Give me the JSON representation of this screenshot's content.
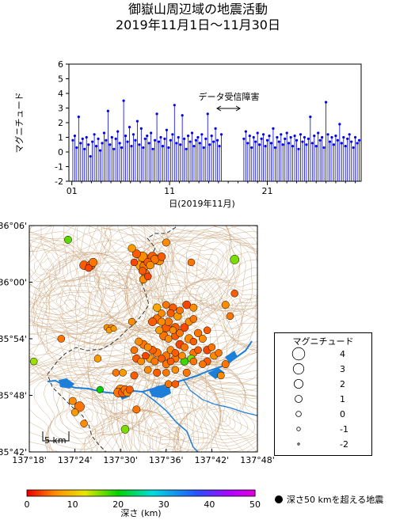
{
  "header": {
    "title_line1": "御嶽山周辺域の地震活動",
    "title_line2": "2019年11月1日～11月30日"
  },
  "chart_data": [
    {
      "type": "stem",
      "title": "",
      "xlabel": "日(2019年11月)",
      "ylabel": "マグニチュード",
      "xlim": [
        1,
        30
      ],
      "ylim": [
        -2,
        6
      ],
      "yticks": [
        "-2",
        "-1",
        "0",
        "1",
        "2",
        "3",
        "4",
        "5",
        "6"
      ],
      "xticks": [
        "01",
        "11",
        "21"
      ],
      "gap": {
        "label": "データ受信障害",
        "from_day": 16.5,
        "to_day": 18.5
      },
      "colors": {
        "stem": "#0000ee"
      },
      "events": [
        [
          1.1,
          0.8
        ],
        [
          1.3,
          1.1
        ],
        [
          1.5,
          0.3
        ],
        [
          1.7,
          2.4
        ],
        [
          1.9,
          0.6
        ],
        [
          2.1,
          0.9
        ],
        [
          2.3,
          0.2
        ],
        [
          2.5,
          1.0
        ],
        [
          2.7,
          0.5
        ],
        [
          2.9,
          -0.3
        ],
        [
          3.1,
          0.7
        ],
        [
          3.3,
          1.2
        ],
        [
          3.5,
          0.4
        ],
        [
          3.7,
          0.9
        ],
        [
          3.9,
          0.1
        ],
        [
          4.1,
          0.6
        ],
        [
          4.3,
          1.3
        ],
        [
          4.5,
          0.8
        ],
        [
          4.7,
          2.8
        ],
        [
          4.9,
          0.5
        ],
        [
          5.1,
          1.0
        ],
        [
          5.3,
          0.2
        ],
        [
          5.5,
          0.9
        ],
        [
          5.7,
          1.4
        ],
        [
          5.9,
          0.6
        ],
        [
          6.1,
          0.3
        ],
        [
          6.3,
          3.5
        ],
        [
          6.5,
          1.1
        ],
        [
          6.7,
          0.7
        ],
        [
          6.9,
          1.7
        ],
        [
          7.1,
          0.4
        ],
        [
          7.3,
          1.2
        ],
        [
          7.5,
          0.8
        ],
        [
          7.7,
          2.1
        ],
        [
          7.9,
          0.5
        ],
        [
          8.1,
          1.6
        ],
        [
          8.3,
          0.3
        ],
        [
          8.5,
          0.9
        ],
        [
          8.7,
          1.1
        ],
        [
          8.9,
          0.6
        ],
        [
          9.1,
          1.3
        ],
        [
          9.3,
          0.2
        ],
        [
          9.5,
          0.8
        ],
        [
          9.7,
          2.6
        ],
        [
          9.9,
          0.7
        ],
        [
          10.1,
          1.0
        ],
        [
          10.3,
          0.4
        ],
        [
          10.5,
          0.9
        ],
        [
          10.7,
          1.5
        ],
        [
          10.9,
          0.3
        ],
        [
          11.1,
          0.8
        ],
        [
          11.3,
          1.2
        ],
        [
          11.5,
          3.2
        ],
        [
          11.7,
          0.6
        ],
        [
          11.9,
          1.0
        ],
        [
          12.1,
          0.5
        ],
        [
          12.3,
          2.5
        ],
        [
          12.5,
          0.9
        ],
        [
          12.7,
          0.2
        ],
        [
          12.9,
          1.1
        ],
        [
          13.1,
          0.7
        ],
        [
          13.3,
          1.3
        ],
        [
          13.5,
          0.4
        ],
        [
          13.7,
          0.8
        ],
        [
          13.9,
          1.0
        ],
        [
          14.1,
          0.6
        ],
        [
          14.3,
          1.2
        ],
        [
          14.5,
          0.3
        ],
        [
          14.7,
          0.9
        ],
        [
          14.9,
          2.6
        ],
        [
          15.1,
          0.5
        ],
        [
          15.3,
          1.1
        ],
        [
          15.5,
          0.7
        ],
        [
          15.7,
          1.6
        ],
        [
          15.9,
          0.8
        ],
        [
          16.1,
          0.4
        ],
        [
          16.3,
          1.2
        ],
        [
          18.6,
          0.9
        ],
        [
          18.8,
          1.4
        ],
        [
          19.0,
          0.6
        ],
        [
          19.2,
          1.1
        ],
        [
          19.4,
          0.3
        ],
        [
          19.6,
          1.0
        ],
        [
          19.8,
          0.7
        ],
        [
          20.0,
          1.3
        ],
        [
          20.2,
          0.5
        ],
        [
          20.4,
          0.9
        ],
        [
          20.6,
          1.2
        ],
        [
          20.8,
          0.4
        ],
        [
          21.0,
          0.8
        ],
        [
          21.2,
          1.1
        ],
        [
          21.4,
          0.6
        ],
        [
          21.6,
          1.6
        ],
        [
          21.8,
          0.3
        ],
        [
          22.0,
          1.0
        ],
        [
          22.2,
          0.7
        ],
        [
          22.4,
          1.2
        ],
        [
          22.6,
          0.5
        ],
        [
          22.8,
          0.9
        ],
        [
          23.0,
          1.3
        ],
        [
          23.2,
          0.6
        ],
        [
          23.4,
          1.0
        ],
        [
          23.6,
          0.4
        ],
        [
          23.8,
          1.1
        ],
        [
          24.0,
          0.8
        ],
        [
          24.2,
          0.2
        ],
        [
          24.4,
          1.2
        ],
        [
          24.6,
          0.7
        ],
        [
          24.8,
          1.0
        ],
        [
          25.0,
          0.5
        ],
        [
          25.2,
          0.9
        ],
        [
          25.4,
          2.4
        ],
        [
          25.6,
          0.6
        ],
        [
          25.8,
          1.1
        ],
        [
          26.0,
          0.4
        ],
        [
          26.2,
          1.3
        ],
        [
          26.4,
          0.8
        ],
        [
          26.6,
          1.0
        ],
        [
          26.8,
          0.3
        ],
        [
          27.0,
          3.4
        ],
        [
          27.2,
          1.2
        ],
        [
          27.4,
          0.7
        ],
        [
          27.6,
          1.0
        ],
        [
          27.8,
          0.5
        ],
        [
          28.0,
          1.1
        ],
        [
          28.2,
          0.8
        ],
        [
          28.4,
          1.9
        ],
        [
          28.6,
          0.6
        ],
        [
          28.8,
          1.0
        ],
        [
          29.0,
          0.4
        ],
        [
          29.2,
          0.9
        ],
        [
          29.4,
          1.2
        ],
        [
          29.6,
          0.7
        ],
        [
          29.8,
          0.3
        ],
        [
          30.0,
          1.0
        ],
        [
          30.2,
          0.6
        ],
        [
          30.4,
          0.8
        ]
      ]
    },
    {
      "type": "scatter",
      "title": "",
      "xlim": [
        137.3,
        137.8
      ],
      "ylim": [
        35.7,
        36.1
      ],
      "lon_ticks": [
        "137°18'",
        "137°24'",
        "137°30'",
        "137°36'",
        "137°42'",
        "137°48'"
      ],
      "lat_ticks": [
        "36°06'",
        "36°00'",
        "35°54'",
        "35°48'",
        "35°42'"
      ],
      "scale_bar": "5 km",
      "colorbar": {
        "label": "深さ (km)",
        "ticks": [
          "0",
          "10",
          "20",
          "30",
          "40",
          "50"
        ],
        "range": [
          0,
          50
        ]
      },
      "deep_note": "深さ50 kmを超える地震",
      "legend": {
        "title": "マグニチュード",
        "entries": [
          {
            "mag": "4"
          },
          {
            "mag": "3"
          },
          {
            "mag": "2"
          },
          {
            "mag": "1"
          },
          {
            "mag": "0"
          },
          {
            "mag": "-1"
          },
          {
            "mag": "-2"
          }
        ]
      },
      "events": [
        [
          137.42,
          36.03,
          2,
          4
        ],
        [
          137.435,
          36.03,
          2,
          4
        ],
        [
          137.44,
          36.035,
          1.8,
          5
        ],
        [
          137.43,
          36.025,
          1,
          3
        ],
        [
          137.548,
          36.045,
          2.5,
          6
        ],
        [
          137.555,
          36.04,
          2.8,
          5
        ],
        [
          137.56,
          36.035,
          1.5,
          4
        ],
        [
          137.545,
          36.03,
          3.0,
          7
        ],
        [
          137.552,
          36.028,
          2,
          5
        ],
        [
          137.565,
          36.03,
          1.4,
          6
        ],
        [
          137.57,
          36.045,
          2.2,
          4
        ],
        [
          137.575,
          36.04,
          1.8,
          5
        ],
        [
          137.548,
          36.02,
          1.2,
          4
        ],
        [
          137.555,
          36.015,
          1.6,
          5
        ],
        [
          137.56,
          36.01,
          1.0,
          3
        ],
        [
          137.55,
          36.005,
          1.4,
          6
        ],
        [
          137.58,
          36.04,
          2.4,
          5
        ],
        [
          137.585,
          36.038,
          2.0,
          6
        ],
        [
          137.59,
          36.045,
          1.5,
          4
        ],
        [
          137.525,
          36.06,
          1.3,
          7
        ],
        [
          137.535,
          36.05,
          1.6,
          4
        ],
        [
          137.53,
          36.035,
          1.0,
          3
        ],
        [
          137.385,
          36.075,
          1.2,
          17
        ],
        [
          137.47,
          35.92,
          0.5,
          6
        ],
        [
          137.475,
          35.915,
          0.4,
          7
        ],
        [
          137.48,
          35.92,
          0.5,
          6
        ],
        [
          137.485,
          35.918,
          0.3,
          7
        ],
        [
          137.57,
          35.93,
          1.6,
          4
        ],
        [
          137.58,
          35.935,
          1.8,
          5
        ],
        [
          137.59,
          35.93,
          1.2,
          6
        ],
        [
          137.6,
          35.92,
          2.0,
          4
        ],
        [
          137.605,
          35.93,
          1.4,
          5
        ],
        [
          137.615,
          35.915,
          1.0,
          6
        ],
        [
          137.62,
          35.92,
          1.6,
          4
        ],
        [
          137.585,
          35.915,
          1.2,
          7
        ],
        [
          137.595,
          35.905,
          1.8,
          5
        ],
        [
          137.605,
          35.9,
          1.0,
          6
        ],
        [
          137.62,
          35.905,
          1.4,
          4
        ],
        [
          137.63,
          35.91,
          1.0,
          5
        ],
        [
          137.64,
          35.92,
          1.6,
          3
        ],
        [
          137.65,
          35.93,
          1.2,
          6
        ],
        [
          137.66,
          35.935,
          1.0,
          5
        ],
        [
          137.625,
          35.94,
          1.5,
          7
        ],
        [
          137.61,
          35.945,
          1.2,
          4
        ],
        [
          137.59,
          35.945,
          1.0,
          6
        ],
        [
          137.58,
          35.955,
          1.4,
          8
        ],
        [
          137.6,
          35.96,
          1.0,
          5
        ],
        [
          137.615,
          35.955,
          1.3,
          4
        ],
        [
          137.63,
          35.95,
          1.0,
          5
        ],
        [
          137.645,
          35.96,
          1.6,
          3
        ],
        [
          137.66,
          35.955,
          1.2,
          6
        ],
        [
          137.55,
          35.89,
          1.6,
          5
        ],
        [
          137.56,
          35.885,
          1.2,
          6
        ],
        [
          137.57,
          35.88,
          1.4,
          4
        ],
        [
          137.58,
          35.875,
          1.8,
          5
        ],
        [
          137.555,
          35.87,
          1.0,
          3
        ],
        [
          137.565,
          35.865,
          1.5,
          7
        ],
        [
          137.575,
          35.86,
          1.2,
          5
        ],
        [
          137.59,
          35.865,
          1.0,
          4
        ],
        [
          137.6,
          35.87,
          1.4,
          5
        ],
        [
          137.61,
          35.88,
          1.2,
          6
        ],
        [
          137.62,
          35.875,
          1.0,
          4
        ],
        [
          137.63,
          35.89,
          1.6,
          3
        ],
        [
          137.64,
          35.885,
          1.2,
          5
        ],
        [
          137.65,
          35.9,
          1.8,
          6
        ],
        [
          137.66,
          35.895,
          1.0,
          4
        ],
        [
          137.67,
          35.91,
          1.4,
          5
        ],
        [
          137.68,
          35.9,
          1.2,
          6
        ],
        [
          137.69,
          35.915,
          1.0,
          4
        ],
        [
          137.54,
          35.895,
          1.2,
          6
        ],
        [
          137.53,
          35.88,
          1.0,
          5
        ],
        [
          137.535,
          35.865,
          1.4,
          4
        ],
        [
          137.545,
          35.86,
          1.0,
          6
        ],
        [
          137.6,
          35.855,
          1.2,
          5
        ],
        [
          137.61,
          35.86,
          1.0,
          4
        ],
        [
          137.62,
          35.865,
          1.3,
          5
        ],
        [
          137.635,
          35.87,
          1.0,
          6
        ],
        [
          137.66,
          35.875,
          1.2,
          5
        ],
        [
          137.67,
          35.88,
          1.0,
          4
        ],
        [
          137.69,
          35.88,
          1.4,
          3
        ],
        [
          137.7,
          35.885,
          1.0,
          5
        ],
        [
          137.705,
          35.87,
          1.2,
          6
        ],
        [
          137.715,
          35.875,
          1.0,
          5
        ],
        [
          137.69,
          35.86,
          1.2,
          4
        ],
        [
          137.66,
          35.86,
          1.0,
          5
        ],
        [
          137.64,
          35.86,
          1.4,
          18
        ],
        [
          137.655,
          35.865,
          1.2,
          16
        ],
        [
          137.495,
          35.805,
          2.2,
          5
        ],
        [
          137.5,
          35.81,
          2.5,
          6
        ],
        [
          137.505,
          35.805,
          2.0,
          4
        ],
        [
          137.51,
          35.81,
          1.6,
          5
        ],
        [
          137.515,
          35.805,
          1.4,
          6
        ],
        [
          137.52,
          35.81,
          1.2,
          4
        ],
        [
          137.41,
          35.78,
          2.6,
          5
        ],
        [
          137.4,
          35.77,
          1.0,
          7
        ],
        [
          137.395,
          35.79,
          1.2,
          6
        ],
        [
          137.37,
          35.9,
          1.0,
          5
        ],
        [
          137.31,
          35.86,
          1.0,
          15
        ],
        [
          137.455,
          35.81,
          0.8,
          20
        ],
        [
          137.42,
          35.75,
          1.0,
          6
        ],
        [
          137.535,
          35.775,
          1.2,
          5
        ],
        [
          137.51,
          35.74,
          1.5,
          16
        ],
        [
          137.72,
          35.835,
          1.0,
          6
        ],
        [
          137.73,
          35.855,
          1.2,
          5
        ],
        [
          137.73,
          35.96,
          1.2,
          6
        ],
        [
          137.74,
          35.94,
          1.0,
          5
        ],
        [
          137.75,
          35.98,
          1.0,
          4
        ],
        [
          137.75,
          36.04,
          2.0,
          16
        ],
        [
          137.6,
          36.07,
          1.2,
          6
        ],
        [
          137.655,
          36.035,
          1.0,
          5
        ],
        [
          137.505,
          35.84,
          1.0,
          7
        ],
        [
          137.45,
          35.865,
          1.0,
          7
        ],
        [
          137.49,
          35.84,
          1.0,
          5
        ],
        [
          137.53,
          35.835,
          1.2,
          4
        ],
        [
          137.56,
          35.845,
          1.0,
          6
        ],
        [
          137.58,
          35.84,
          1.2,
          4
        ],
        [
          137.6,
          35.84,
          1.0,
          5
        ],
        [
          137.62,
          35.845,
          1.0,
          6
        ],
        [
          137.605,
          35.82,
          1.0,
          5
        ],
        [
          137.62,
          35.82,
          1.0,
          4
        ],
        [
          137.645,
          35.84,
          1.2,
          5
        ],
        [
          137.68,
          35.855,
          1.0,
          5
        ],
        [
          137.525,
          35.93,
          1.0,
          6
        ]
      ]
    }
  ]
}
